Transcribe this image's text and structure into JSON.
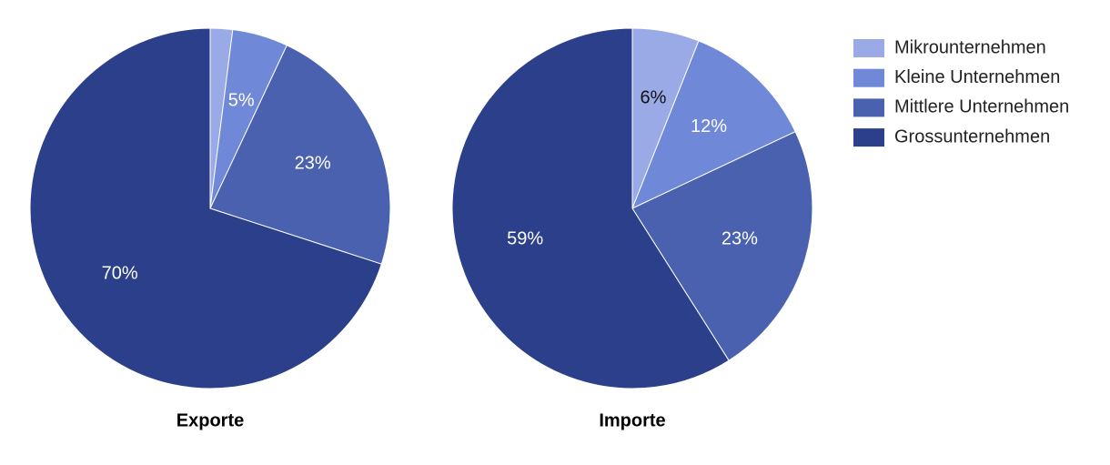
{
  "chart_data": {
    "type": "pie",
    "categories": [
      "Mikrounternehmen",
      "Kleine Unternehmen",
      "Mittlere Unternehmen",
      "Grossunternehmen"
    ],
    "colors": [
      "#9aaae6",
      "#6f88d8",
      "#4a61b0",
      "#2b3f8a"
    ],
    "series": [
      {
        "name": "Exporte",
        "values": [
          2,
          5,
          23,
          70
        ],
        "value_labels": [
          null,
          "5%",
          "23%",
          "70%"
        ]
      },
      {
        "name": "Importe",
        "values": [
          6,
          12,
          23,
          59
        ],
        "value_labels": [
          "6%",
          "12%",
          "23%",
          "59%"
        ]
      }
    ]
  }
}
